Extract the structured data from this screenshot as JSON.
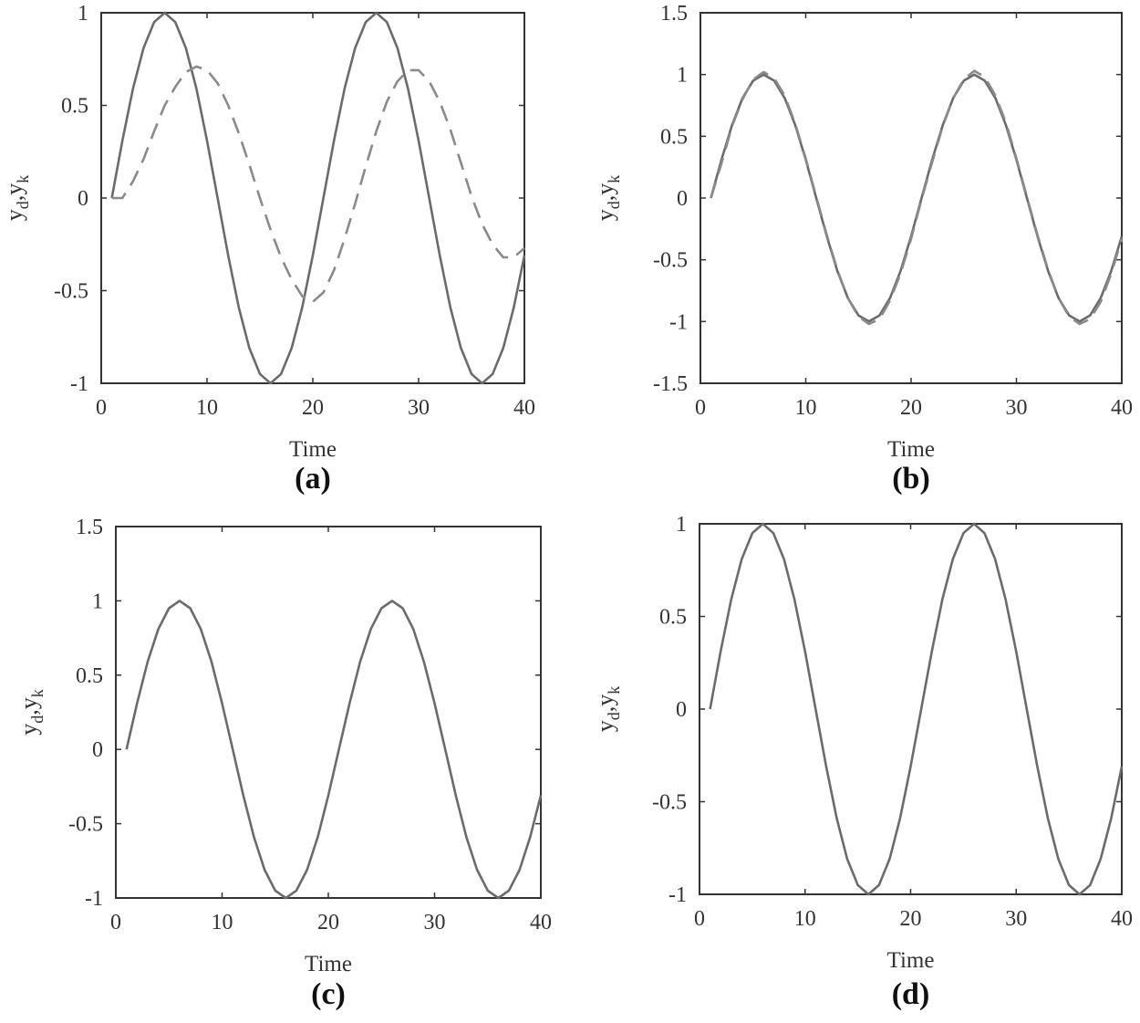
{
  "colors": {
    "solid": "#6b6b6b",
    "dashed": "#8a8a8a",
    "axis": "#333333"
  },
  "chart_data": [
    {
      "type": "line",
      "panel": "(a)",
      "xlabel": "Time",
      "ylabel": "y_d,y_k",
      "ylabel_main_1": "y",
      "ylabel_sub_1": "d",
      "ylabel_sep": ",",
      "ylabel_main_2": "y",
      "ylabel_sub_2": "k",
      "xlim": [
        0,
        40
      ],
      "ylim": [
        -1,
        1
      ],
      "xticks": [
        0,
        10,
        20,
        30,
        40
      ],
      "xtick_labels": [
        "0",
        "10",
        "20",
        "30",
        "40"
      ],
      "yticks": [
        -1,
        -0.5,
        0,
        0.5,
        1
      ],
      "ytick_labels": [
        "-1",
        "-0.5",
        "0",
        "0.5",
        "1"
      ],
      "series": [
        {
          "style": "solid",
          "x": [
            1,
            2,
            3,
            4,
            5,
            6,
            7,
            8,
            9,
            10,
            11,
            12,
            13,
            14,
            15,
            16,
            17,
            18,
            19,
            20,
            21,
            22,
            23,
            24,
            25,
            26,
            27,
            28,
            29,
            30,
            31,
            32,
            33,
            34,
            35,
            36,
            37,
            38,
            39,
            40
          ],
          "values": [
            0,
            0.31,
            0.59,
            0.81,
            0.95,
            1.0,
            0.95,
            0.81,
            0.59,
            0.31,
            0,
            -0.31,
            -0.59,
            -0.81,
            -0.95,
            -1.0,
            -0.95,
            -0.81,
            -0.59,
            -0.31,
            0,
            0.31,
            0.59,
            0.81,
            0.95,
            1.0,
            0.95,
            0.81,
            0.59,
            0.31,
            0,
            -0.31,
            -0.59,
            -0.81,
            -0.95,
            -1.0,
            -0.95,
            -0.81,
            -0.59,
            -0.31
          ]
        },
        {
          "style": "dashed",
          "x": [
            1,
            2,
            3,
            4,
            5,
            6,
            7,
            8,
            9,
            10,
            11,
            12,
            13,
            14,
            15,
            16,
            17,
            18,
            19,
            20,
            21,
            22,
            23,
            24,
            25,
            26,
            27,
            28,
            29,
            30,
            31,
            32,
            33,
            34,
            35,
            36,
            37,
            38,
            39,
            40
          ],
          "values": [
            0,
            0,
            0.09,
            0.21,
            0.36,
            0.5,
            0.6,
            0.68,
            0.71,
            0.69,
            0.62,
            0.5,
            0.35,
            0.18,
            0.0,
            -0.17,
            -0.32,
            -0.44,
            -0.53,
            -0.56,
            -0.51,
            -0.39,
            -0.22,
            -0.03,
            0.17,
            0.36,
            0.52,
            0.63,
            0.69,
            0.69,
            0.63,
            0.52,
            0.37,
            0.19,
            0.01,
            -0.14,
            -0.25,
            -0.32,
            -0.32,
            -0.27
          ]
        }
      ]
    },
    {
      "type": "line",
      "panel": "(b)",
      "xlabel": "Time",
      "ylabel": "y_d,y_k",
      "ylabel_main_1": "y",
      "ylabel_sub_1": "d",
      "ylabel_sep": ",",
      "ylabel_main_2": "y",
      "ylabel_sub_2": "k",
      "xlim": [
        0,
        40
      ],
      "ylim": [
        -1.5,
        1.5
      ],
      "xticks": [
        0,
        10,
        20,
        30,
        40
      ],
      "xtick_labels": [
        "0",
        "10",
        "20",
        "30",
        "40"
      ],
      "yticks": [
        -1.5,
        -1,
        -0.5,
        0,
        0.5,
        1,
        1.5
      ],
      "ytick_labels": [
        "-1.5",
        "-1",
        "-0.5",
        "0",
        "0.5",
        "1",
        "1.5"
      ],
      "series": [
        {
          "style": "solid",
          "x": [
            1,
            2,
            3,
            4,
            5,
            6,
            7,
            8,
            9,
            10,
            11,
            12,
            13,
            14,
            15,
            16,
            17,
            18,
            19,
            20,
            21,
            22,
            23,
            24,
            25,
            26,
            27,
            28,
            29,
            30,
            31,
            32,
            33,
            34,
            35,
            36,
            37,
            38,
            39,
            40
          ],
          "values": [
            0,
            0.31,
            0.59,
            0.81,
            0.95,
            1.0,
            0.95,
            0.81,
            0.59,
            0.31,
            0,
            -0.31,
            -0.59,
            -0.81,
            -0.95,
            -1.0,
            -0.95,
            -0.81,
            -0.59,
            -0.31,
            0,
            0.31,
            0.59,
            0.81,
            0.95,
            1.0,
            0.95,
            0.81,
            0.59,
            0.31,
            0,
            -0.31,
            -0.59,
            -0.81,
            -0.95,
            -1.0,
            -0.95,
            -0.81,
            -0.59,
            -0.31
          ]
        },
        {
          "style": "dashed",
          "x": [
            1,
            2,
            3,
            4,
            5,
            6,
            7,
            8,
            9,
            10,
            11,
            12,
            13,
            14,
            15,
            16,
            17,
            18,
            19,
            20,
            21,
            22,
            23,
            24,
            25,
            26,
            27,
            28,
            29,
            30,
            31,
            32,
            33,
            34,
            35,
            36,
            37,
            38,
            39,
            40
          ],
          "values": [
            0,
            0.28,
            0.58,
            0.8,
            0.96,
            1.02,
            0.97,
            0.83,
            0.6,
            0.32,
            0.01,
            -0.3,
            -0.58,
            -0.81,
            -0.96,
            -1.02,
            -0.98,
            -0.83,
            -0.61,
            -0.33,
            -0.01,
            0.29,
            0.58,
            0.81,
            0.96,
            1.03,
            0.98,
            0.83,
            0.61,
            0.32,
            0.01,
            -0.3,
            -0.58,
            -0.81,
            -0.96,
            -1.02,
            -0.98,
            -0.84,
            -0.61,
            -0.33
          ]
        }
      ]
    },
    {
      "type": "line",
      "panel": "(c)",
      "xlabel": "Time",
      "ylabel": "y_d,y_k",
      "ylabel_main_1": "y",
      "ylabel_sub_1": "d",
      "ylabel_sep": ",",
      "ylabel_main_2": "y",
      "ylabel_sub_2": "k",
      "xlim": [
        0,
        40
      ],
      "ylim": [
        -1,
        1.5
      ],
      "xticks": [
        0,
        10,
        20,
        30,
        40
      ],
      "xtick_labels": [
        "0",
        "10",
        "20",
        "30",
        "40"
      ],
      "yticks": [
        -1,
        -0.5,
        0,
        0.5,
        1,
        1.5
      ],
      "ytick_labels": [
        "-1",
        "-0.5",
        "0",
        "0.5",
        "1",
        "1.5"
      ],
      "series": [
        {
          "style": "solid",
          "x": [
            1,
            2,
            3,
            4,
            5,
            6,
            7,
            8,
            9,
            10,
            11,
            12,
            13,
            14,
            15,
            16,
            17,
            18,
            19,
            20,
            21,
            22,
            23,
            24,
            25,
            26,
            27,
            28,
            29,
            30,
            31,
            32,
            33,
            34,
            35,
            36,
            37,
            38,
            39,
            40
          ],
          "values": [
            0,
            0.31,
            0.59,
            0.81,
            0.95,
            1.0,
            0.95,
            0.81,
            0.59,
            0.31,
            0,
            -0.31,
            -0.59,
            -0.81,
            -0.95,
            -1.0,
            -0.95,
            -0.81,
            -0.59,
            -0.31,
            0,
            0.31,
            0.59,
            0.81,
            0.95,
            1.0,
            0.95,
            0.81,
            0.59,
            0.31,
            0,
            -0.31,
            -0.59,
            -0.81,
            -0.95,
            -1.0,
            -0.95,
            -0.81,
            -0.59,
            -0.31
          ]
        }
      ]
    },
    {
      "type": "line",
      "panel": "(d)",
      "xlabel": "Time",
      "ylabel": "y_d,y_k",
      "ylabel_main_1": "y",
      "ylabel_sub_1": "d",
      "ylabel_sep": ",",
      "ylabel_main_2": "y",
      "ylabel_sub_2": "k",
      "xlim": [
        0,
        40
      ],
      "ylim": [
        -1,
        1
      ],
      "xticks": [
        0,
        10,
        20,
        30,
        40
      ],
      "xtick_labels": [
        "0",
        "10",
        "20",
        "30",
        "40"
      ],
      "yticks": [
        -1,
        -0.5,
        0,
        0.5,
        1
      ],
      "ytick_labels": [
        "-1",
        "-0.5",
        "0",
        "0.5",
        "1"
      ],
      "series": [
        {
          "style": "solid",
          "x": [
            1,
            2,
            3,
            4,
            5,
            6,
            7,
            8,
            9,
            10,
            11,
            12,
            13,
            14,
            15,
            16,
            17,
            18,
            19,
            20,
            21,
            22,
            23,
            24,
            25,
            26,
            27,
            28,
            29,
            30,
            31,
            32,
            33,
            34,
            35,
            36,
            37,
            38,
            39,
            40
          ],
          "values": [
            0,
            0.31,
            0.59,
            0.81,
            0.95,
            1.0,
            0.95,
            0.81,
            0.59,
            0.31,
            0,
            -0.31,
            -0.59,
            -0.81,
            -0.95,
            -1.0,
            -0.95,
            -0.81,
            -0.59,
            -0.31,
            0,
            0.31,
            0.59,
            0.81,
            0.95,
            1.0,
            0.95,
            0.81,
            0.59,
            0.31,
            0,
            -0.31,
            -0.59,
            -0.81,
            -0.95,
            -1.0,
            -0.95,
            -0.81,
            -0.59,
            -0.31
          ]
        }
      ]
    }
  ]
}
